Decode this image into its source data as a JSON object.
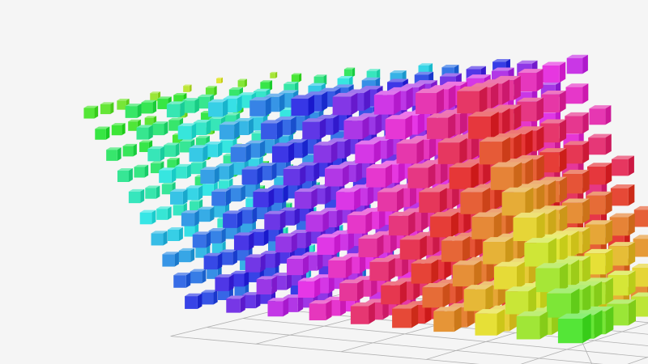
{
  "chart_data": {
    "type": "scatter3D",
    "symbol": "cube",
    "title": "",
    "x": [
      0,
      1,
      2,
      3,
      4,
      5,
      6,
      7,
      8,
      9
    ],
    "y": [
      0,
      1,
      2,
      3,
      4,
      5,
      6,
      7,
      8,
      9
    ],
    "z": [
      0,
      1,
      2,
      3,
      4,
      5,
      6,
      7,
      8,
      9
    ],
    "color_mapping": "hue",
    "grid": true,
    "axis_labels_visible": false,
    "colors": {
      "background": "#f5f5f5",
      "grid": "#b0b0b0"
    }
  }
}
